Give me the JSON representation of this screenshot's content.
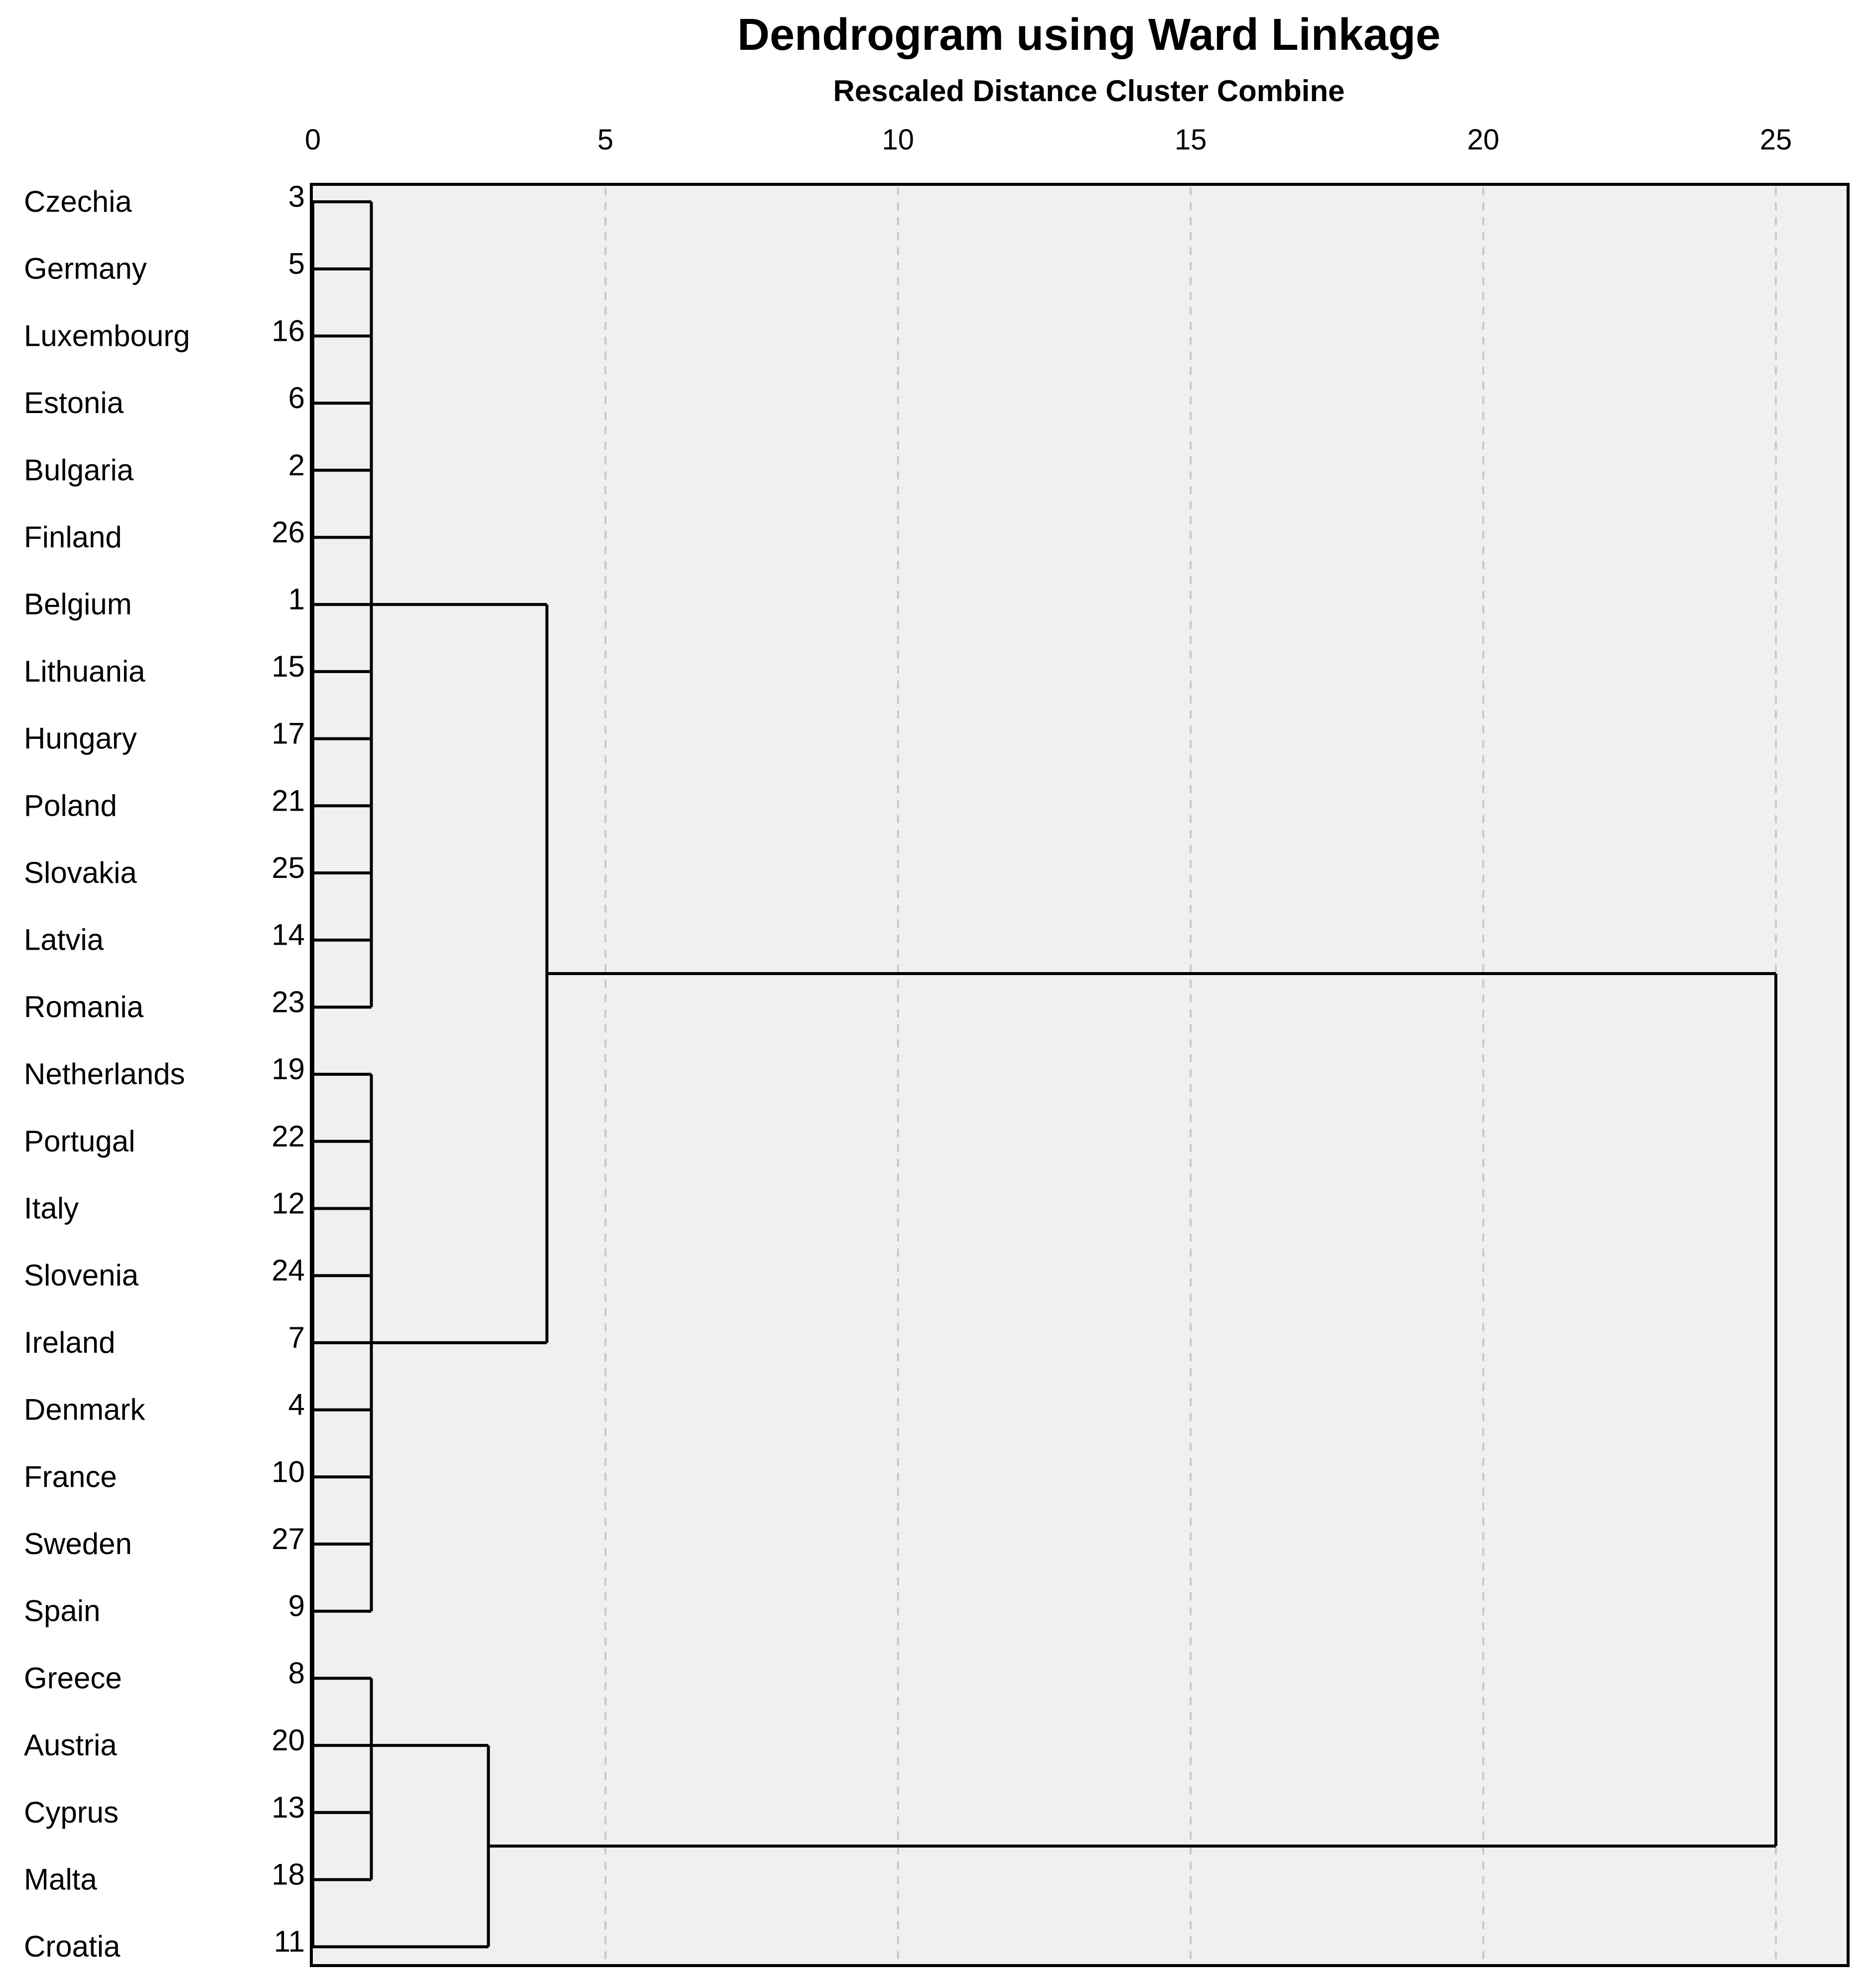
{
  "chart_data": {
    "type": "dendrogram",
    "title": "Dendrogram using Ward Linkage",
    "subtitle": "Rescaled Distance Cluster Combine",
    "xlim": [
      0,
      25
    ],
    "x_ticks": [
      "0",
      "5",
      "10",
      "15",
      "20",
      "25"
    ],
    "gridlines": "dashed vertical",
    "leaves": [
      {
        "label": "Czechia",
        "id": "3"
      },
      {
        "label": "Germany",
        "id": "5"
      },
      {
        "label": "Luxembourg",
        "id": "16"
      },
      {
        "label": "Estonia",
        "id": "6"
      },
      {
        "label": "Bulgaria",
        "id": "2"
      },
      {
        "label": "Finland",
        "id": "26"
      },
      {
        "label": "Belgium",
        "id": "1"
      },
      {
        "label": "Lithuania",
        "id": "15"
      },
      {
        "label": "Hungary",
        "id": "17"
      },
      {
        "label": "Poland",
        "id": "21"
      },
      {
        "label": "Slovakia",
        "id": "25"
      },
      {
        "label": "Latvia",
        "id": "14"
      },
      {
        "label": "Romania",
        "id": "23"
      },
      {
        "label": "Netherlands",
        "id": "19"
      },
      {
        "label": "Portugal",
        "id": "22"
      },
      {
        "label": "Italy",
        "id": "12"
      },
      {
        "label": "Slovenia",
        "id": "24"
      },
      {
        "label": "Ireland",
        "id": "7"
      },
      {
        "label": "Denmark",
        "id": "4"
      },
      {
        "label": "France",
        "id": "10"
      },
      {
        "label": "Sweden",
        "id": "27"
      },
      {
        "label": "Spain",
        "id": "9"
      },
      {
        "label": "Greece",
        "id": "8"
      },
      {
        "label": "Austria",
        "id": "20"
      },
      {
        "label": "Cyprus",
        "id": "13"
      },
      {
        "label": "Malta",
        "id": "18"
      },
      {
        "label": "Croatia",
        "id": "11"
      }
    ],
    "merges": [
      {
        "members": [
          0,
          1,
          2,
          3,
          4,
          5,
          6,
          7,
          8,
          9,
          10,
          11,
          12
        ],
        "height": 1.0
      },
      {
        "members": [
          13,
          14,
          15,
          16,
          17,
          18,
          19,
          20,
          21
        ],
        "height": 1.0
      },
      {
        "members": [
          22,
          23,
          24,
          25
        ],
        "height": 1.0
      },
      {
        "children": [
          "m0",
          "m1"
        ],
        "height": 4.0
      },
      {
        "children": [
          "m2",
          26
        ],
        "height": 3.0
      },
      {
        "children": [
          "m3",
          "m4"
        ],
        "height": 25.0
      }
    ]
  }
}
